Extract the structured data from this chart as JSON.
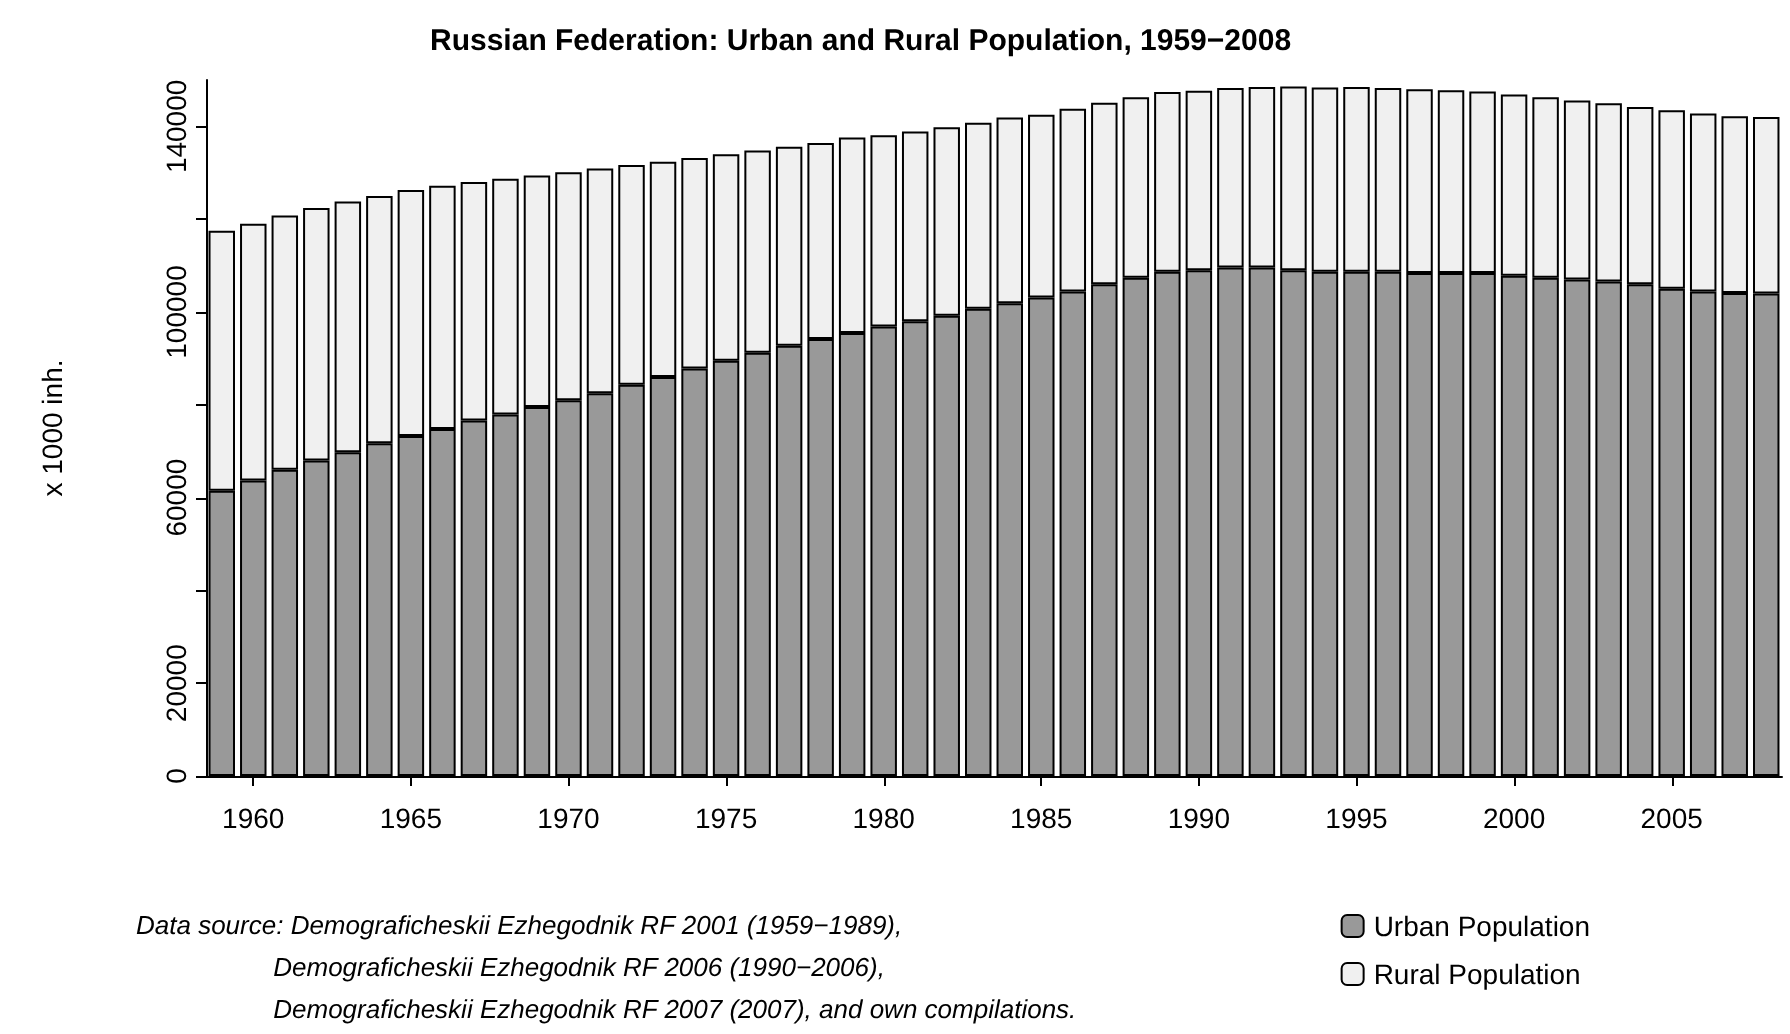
{
  "chart_data": {
    "type": "bar",
    "stacked": true,
    "title": "Russian Federation: Urban and Rural Population, 1959−2008",
    "ylabel": "x 1000 inh.",
    "categories": [
      null,
      "1960",
      null,
      null,
      null,
      null,
      "1965",
      null,
      null,
      null,
      null,
      "1970",
      null,
      null,
      null,
      null,
      "1975",
      null,
      null,
      null,
      null,
      "1980",
      null,
      null,
      null,
      null,
      "1985",
      null,
      null,
      null,
      null,
      "1990",
      null,
      null,
      null,
      null,
      "1995",
      null,
      null,
      null,
      null,
      "2000",
      null,
      null,
      null,
      null,
      "2005",
      null,
      null,
      null
    ],
    "series": [
      {
        "name": "Urban Population",
        "color": "#999999",
        "values": [
          61500,
          63700,
          66000,
          68000,
          69800,
          71700,
          73300,
          74800,
          76600,
          77900,
          79500,
          81000,
          82500,
          84300,
          86000,
          87800,
          89500,
          91200,
          92700,
          94200,
          95500,
          96900,
          98000,
          99200,
          100700,
          101900,
          103100,
          104400,
          106000,
          107400,
          108700,
          109000,
          109600,
          109600,
          109000,
          108700,
          108700,
          108700,
          108400,
          108400,
          108400,
          107800,
          107400,
          107000,
          106600,
          106000,
          105000,
          104400,
          104100,
          104000
        ]
      },
      {
        "name": "Rural Population",
        "color": "#f0f0f0",
        "values": [
          56000,
          55300,
          54800,
          54400,
          54000,
          53300,
          53000,
          52400,
          51400,
          50800,
          49900,
          49100,
          48400,
          47400,
          46400,
          45400,
          44500,
          43600,
          42900,
          42200,
          42100,
          41200,
          40900,
          40600,
          40100,
          40000,
          39400,
          39400,
          39100,
          38900,
          38700,
          38700,
          38700,
          38900,
          39600,
          39700,
          39800,
          39600,
          39600,
          39400,
          39100,
          39100,
          38900,
          38600,
          38400,
          38200,
          38500,
          38400,
          38100,
          38000
        ]
      }
    ],
    "ylim": [
      0,
      150000
    ],
    "yticks": [
      0,
      20000,
      {
        "value": 40000,
        "label": null
      },
      60000,
      {
        "value": 80000,
        "label": null
      },
      100000,
      {
        "value": 120000,
        "label": null
      },
      140000
    ],
    "legend": "bottom right",
    "annotations": [
      "Data source: Demograficheskii Ezhegodnik RF 2001 (1959−1989),\n                   Demograficheskii Ezhegodnik RF 2006 (1990−2006),\n                   Demograficheskii Ezhegodnik RF 2007 (2007), and own compilations."
    ]
  }
}
